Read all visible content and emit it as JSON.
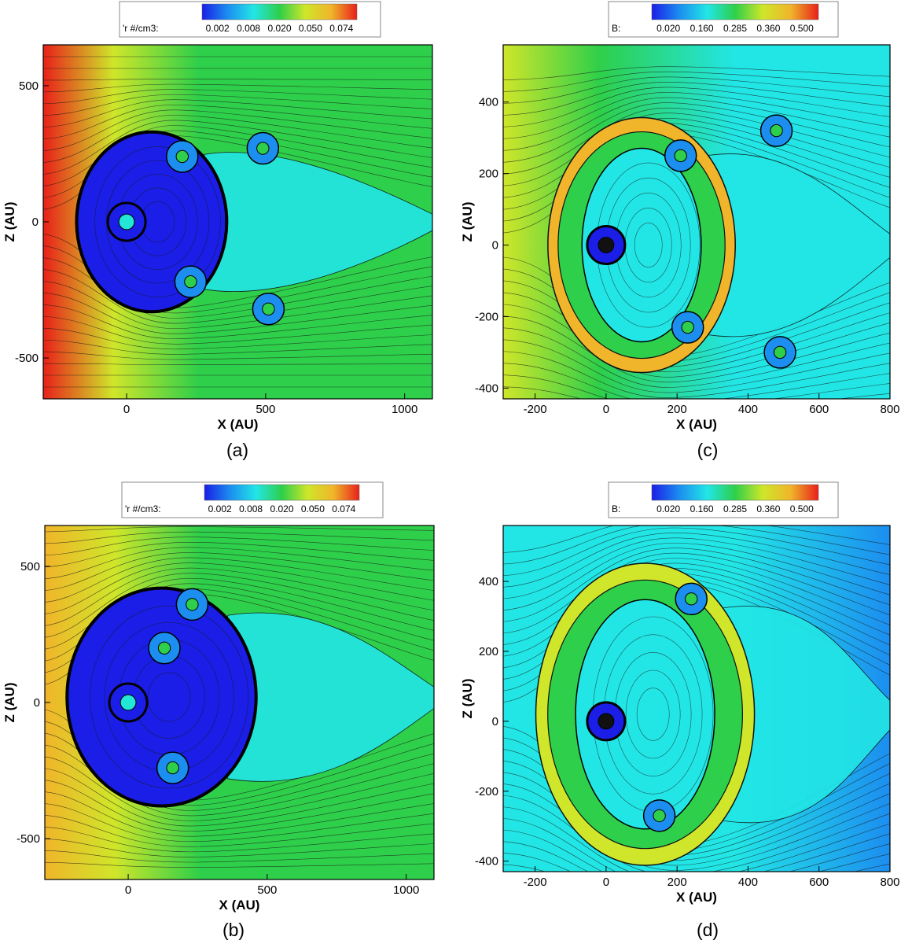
{
  "chart_data": [
    {
      "panel": "(a)",
      "type": "heatmap",
      "xlabel": "X (AU)",
      "ylabel": "Z (AU)",
      "xlim": [
        -300,
        1100
      ],
      "ylim": [
        -650,
        650
      ],
      "xticks": [
        0,
        500,
        1000
      ],
      "yticks": [
        -500,
        0,
        500
      ],
      "legend": {
        "label": "'r #/cm3:",
        "ticks": [
          "0.002",
          "0.008",
          "0.020",
          "0.050",
          "0.074"
        ]
      },
      "colorscale": [
        "#1a1ee6",
        "#1c8ef0",
        "#22e6e6",
        "#2ecf4a",
        "#cfe62a",
        "#f0b52a",
        "#e8201a"
      ],
      "background_level": 0.55,
      "bubble": {
        "center": [
          90,
          0
        ],
        "rx": 270,
        "ry": 330
      },
      "sources": [
        [
          0,
          0
        ],
        [
          200,
          240
        ],
        [
          230,
          -220
        ],
        [
          490,
          270
        ],
        [
          510,
          -320
        ]
      ]
    },
    {
      "panel": "(b)",
      "type": "heatmap",
      "xlabel": "X (AU)",
      "ylabel": "Z (AU)",
      "xlim": [
        -300,
        1100
      ],
      "ylim": [
        -650,
        650
      ],
      "xticks": [
        0,
        500,
        1000
      ],
      "yticks": [
        -500,
        0,
        500
      ],
      "legend": {
        "label": "'r #/cm3:",
        "ticks": [
          "0.002",
          "0.008",
          "0.020",
          "0.050",
          "0.074"
        ]
      },
      "colorscale": [
        "#1a1ee6",
        "#1c8ef0",
        "#22e6e6",
        "#2ecf4a",
        "#cfe62a",
        "#f0b52a",
        "#e8201a"
      ],
      "background_level": 0.5,
      "bubble": {
        "center": [
          120,
          20
        ],
        "rx": 340,
        "ry": 400
      },
      "sources": [
        [
          0,
          0
        ],
        [
          230,
          360
        ],
        [
          130,
          200
        ],
        [
          160,
          -240
        ]
      ]
    },
    {
      "panel": "(c)",
      "type": "heatmap",
      "xlabel": "X (AU)",
      "ylabel": "Z (AU)",
      "xlim": [
        -290,
        800
      ],
      "ylim": [
        -430,
        560
      ],
      "xticks": [
        -200,
        0,
        200,
        400,
        600,
        800
      ],
      "yticks": [
        -400,
        -200,
        0,
        200,
        400
      ],
      "legend": {
        "label": "B:",
        "ticks": [
          "0.020",
          "0.160",
          "0.285",
          "0.360",
          "0.500"
        ]
      },
      "colorscale": [
        "#1a1ee6",
        "#1c8ef0",
        "#22e6e6",
        "#2ecf4a",
        "#cfe62a",
        "#f0b52a",
        "#e8201a"
      ],
      "background_level": 0.45,
      "bubble": {
        "center": [
          100,
          0
        ],
        "rx": 240,
        "ry": 330
      },
      "sources": [
        [
          0,
          0
        ],
        [
          210,
          250
        ],
        [
          230,
          -230
        ],
        [
          480,
          320
        ],
        [
          490,
          -300
        ]
      ]
    },
    {
      "panel": "(d)",
      "type": "heatmap",
      "xlabel": "X (AU)",
      "ylabel": "Z (AU)",
      "xlim": [
        -290,
        800
      ],
      "ylim": [
        -430,
        560
      ],
      "xticks": [
        -200,
        0,
        200,
        400,
        600,
        800
      ],
      "yticks": [
        -400,
        -200,
        0,
        200,
        400
      ],
      "legend": {
        "label": "B:",
        "ticks": [
          "0.020",
          "0.160",
          "0.285",
          "0.360",
          "0.500"
        ]
      },
      "colorscale": [
        "#1a1ee6",
        "#1c8ef0",
        "#22e6e6",
        "#2ecf4a",
        "#cfe62a",
        "#f0b52a",
        "#e8201a"
      ],
      "background_level": 0.33,
      "bubble": {
        "center": [
          110,
          20
        ],
        "rx": 280,
        "ry": 400
      },
      "sources": [
        [
          0,
          0
        ],
        [
          240,
          350
        ],
        [
          150,
          -270
        ]
      ]
    }
  ]
}
